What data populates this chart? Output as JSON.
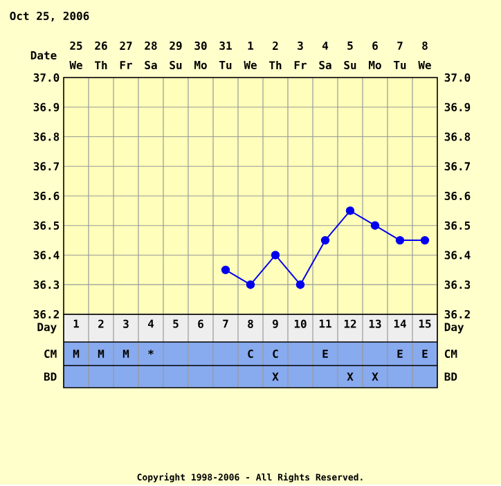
{
  "chart_data": {
    "type": "line",
    "title": "Oct 25, 2006",
    "categories": [
      "1",
      "2",
      "3",
      "4",
      "5",
      "6",
      "7",
      "8",
      "9",
      "10",
      "11",
      "12",
      "13",
      "14",
      "15"
    ],
    "series": [
      {
        "color": "#0000ee",
        "values": [
          null,
          null,
          null,
          null,
          null,
          null,
          36.35,
          36.3,
          36.4,
          36.3,
          36.45,
          36.55,
          36.5,
          36.45,
          36.45
        ]
      }
    ],
    "ylim": [
      36.2,
      37.0
    ],
    "yticks": [
      36.2,
      36.3,
      36.4,
      36.5,
      36.6,
      36.7,
      36.8,
      36.9,
      {
        "value": 37.0,
        "label": "37.0"
      }
    ],
    "y2lim": [
      36.2,
      37.0
    ],
    "y2ticks": [
      36.2,
      36.3,
      36.4,
      36.5,
      36.6,
      36.7,
      36.8,
      36.9,
      {
        "value": 37.0,
        "label": "37.0"
      }
    ],
    "grid": true,
    "marker": "circle",
    "annotations": [
      "Date",
      "25",
      "26",
      "27",
      "28",
      "29",
      "30",
      "31",
      "1",
      "2",
      "3",
      "4",
      "5",
      "6",
      "7",
      "8",
      "We",
      "Th",
      "Fr",
      "Sa",
      "Su",
      "Mo",
      "Tu",
      "We",
      "Th",
      "Fr",
      "Sa",
      "Su",
      "Mo",
      "Tu",
      "We",
      "Day",
      "Day",
      "CM",
      "CM",
      "BD",
      "BD",
      "M",
      "M",
      "M",
      "*",
      null,
      null,
      null,
      "C",
      "C",
      null,
      "E",
      null,
      null,
      "E",
      "E",
      null,
      null,
      null,
      null,
      null,
      null,
      null,
      null,
      "X",
      null,
      null,
      "X",
      "X",
      null,
      null,
      "Copyright 1998-2006 - All Rights Reserved."
    ]
  }
}
